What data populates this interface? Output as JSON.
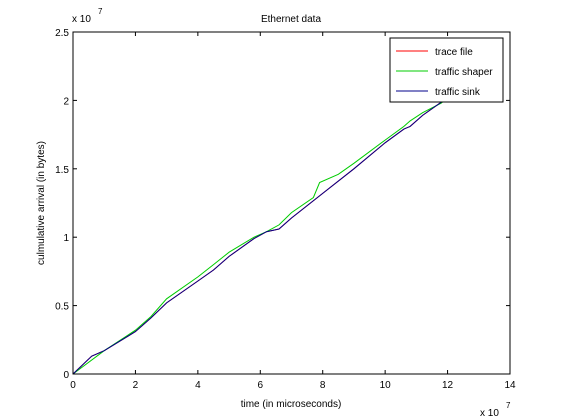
{
  "chart_data": {
    "type": "line",
    "title": "Ethernet data",
    "xlabel": "time (in microseconds)",
    "ylabel": "culmulative arrival (in bytes)",
    "x_multiplier": {
      "base": "x 10",
      "exp": "7"
    },
    "y_multiplier": {
      "base": "x 10",
      "exp": "7"
    },
    "xlim": [
      0,
      14
    ],
    "ylim": [
      0,
      2.5
    ],
    "x_ticks": [
      "0",
      "2",
      "4",
      "6",
      "8",
      "10",
      "12",
      "14"
    ],
    "y_ticks": [
      "0",
      "0.5",
      "1",
      "1.5",
      "2",
      "2.5"
    ],
    "grid": false,
    "legend_position": "top-right",
    "series": [
      {
        "name": "trace file",
        "color": "#ff0000",
        "x": [
          0,
          0.6,
          1.0,
          2.0,
          2.5,
          3.0,
          4.0,
          4.5,
          5.0,
          5.8,
          6.2,
          6.6,
          7.0,
          8.0,
          9.0,
          10.0,
          10.6,
          10.8,
          11.2,
          12.0
        ],
        "y": [
          0,
          0.13,
          0.17,
          0.31,
          0.41,
          0.52,
          0.68,
          0.76,
          0.86,
          0.99,
          1.04,
          1.06,
          1.14,
          1.32,
          1.5,
          1.69,
          1.79,
          1.81,
          1.89,
          2.02
        ]
      },
      {
        "name": "traffic shaper",
        "color": "#00cc00",
        "x": [
          0,
          1.0,
          2.0,
          2.5,
          3.0,
          4.0,
          4.5,
          5.0,
          5.8,
          6.2,
          6.6,
          7.0,
          7.7,
          7.9,
          8.5,
          9.0,
          10.0,
          10.6,
          10.8,
          11.2,
          11.8,
          12.0
        ],
        "y": [
          0,
          0.17,
          0.32,
          0.42,
          0.55,
          0.71,
          0.8,
          0.89,
          1.0,
          1.04,
          1.09,
          1.18,
          1.29,
          1.4,
          1.46,
          1.54,
          1.71,
          1.81,
          1.85,
          1.91,
          1.98,
          2.02
        ]
      },
      {
        "name": "traffic sink",
        "color": "#00008b",
        "x": [
          0,
          0.6,
          1.0,
          2.0,
          2.5,
          3.0,
          4.0,
          4.5,
          5.0,
          5.8,
          6.2,
          6.6,
          7.0,
          8.0,
          9.0,
          10.0,
          10.6,
          10.8,
          11.2,
          12.0
        ],
        "y": [
          0,
          0.13,
          0.17,
          0.31,
          0.41,
          0.52,
          0.68,
          0.76,
          0.86,
          0.99,
          1.04,
          1.06,
          1.14,
          1.32,
          1.5,
          1.69,
          1.79,
          1.81,
          1.89,
          2.02
        ]
      }
    ]
  }
}
